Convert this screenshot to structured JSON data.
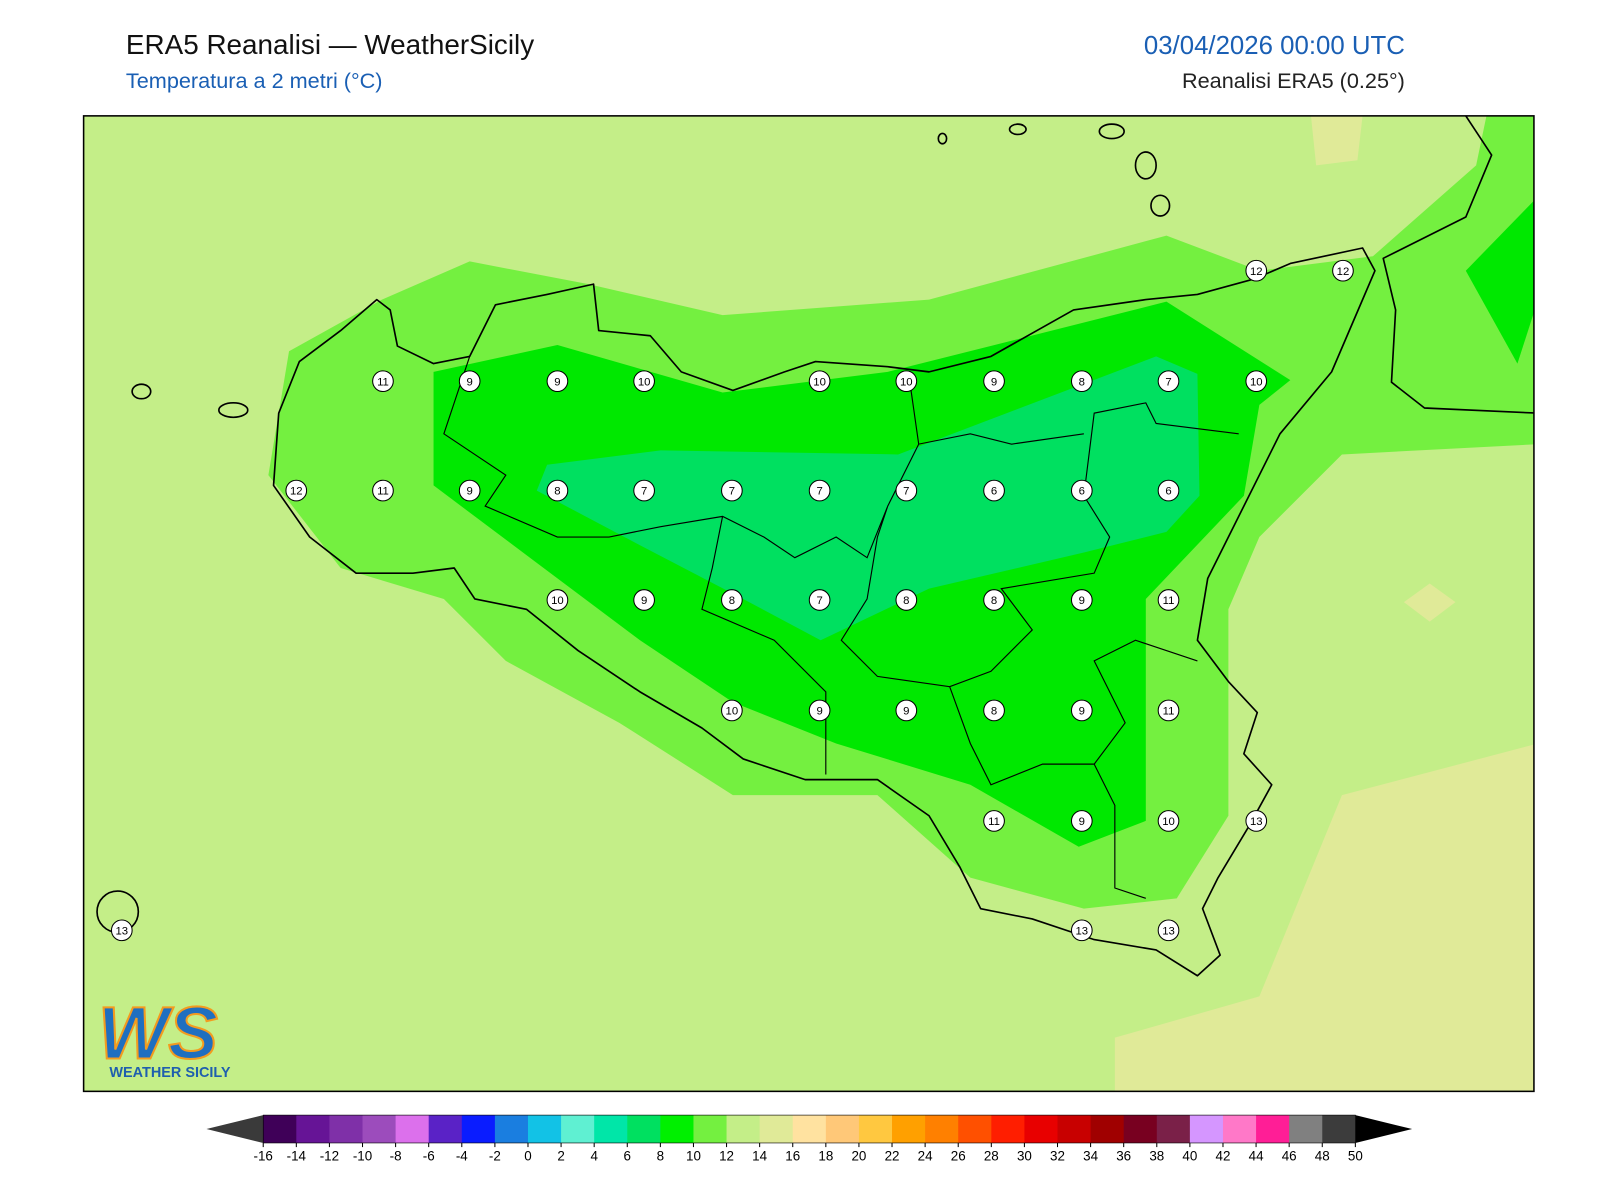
{
  "header": {
    "title": "ERA5 Reanalisi — WeatherSicily",
    "subtitle": "Temperatura a 2 metri (°C)",
    "datetime": "03/04/2026 00:00 UTC",
    "source": "Reanalisi ERA5 (0.25°)"
  },
  "stations": [
    12,
    12,
    11,
    9,
    9,
    10,
    10,
    10,
    9,
    8,
    7,
    10,
    12,
    11,
    9,
    8,
    7,
    7,
    7,
    7,
    6,
    6,
    6,
    10,
    9,
    8,
    7,
    8,
    8,
    9,
    11,
    10,
    9,
    9,
    8,
    9,
    11,
    11,
    9,
    10,
    13,
    13,
    13,
    13
  ],
  "colorbar": {
    "ticks": [
      -16,
      -14,
      -12,
      -10,
      -8,
      -6,
      -4,
      -2,
      0,
      2,
      4,
      6,
      8,
      10,
      12,
      14,
      16,
      18,
      20,
      22,
      24,
      26,
      28,
      30,
      32,
      34,
      36,
      38,
      40,
      42,
      44,
      46,
      48,
      50
    ],
    "colors": [
      "#3f0058",
      "#661496",
      "#7f30a8",
      "#9c4cbc",
      "#dc70ec",
      "#5a22c6",
      "#0a1cff",
      "#1a7ee0",
      "#12c2e6",
      "#5ff0d2",
      "#00e6a8",
      "#00e060",
      "#00f000",
      "#74f040",
      "#c4ee88",
      "#e0ea98",
      "#ffe2a0",
      "#ffc878",
      "#ffc840",
      "#ffa000",
      "#ff8000",
      "#ff5000",
      "#ff1e00",
      "#e80000",
      "#c80000",
      "#a00000",
      "#780020",
      "#7a2048",
      "#d596ff",
      "#ff78c8",
      "#ff1e96",
      "#808080",
      "#3c3c3c"
    ],
    "under": "#3a3a3a",
    "over": "#000000"
  },
  "logo": {
    "mark": "WS",
    "text": "WEATHER SICILY"
  }
}
